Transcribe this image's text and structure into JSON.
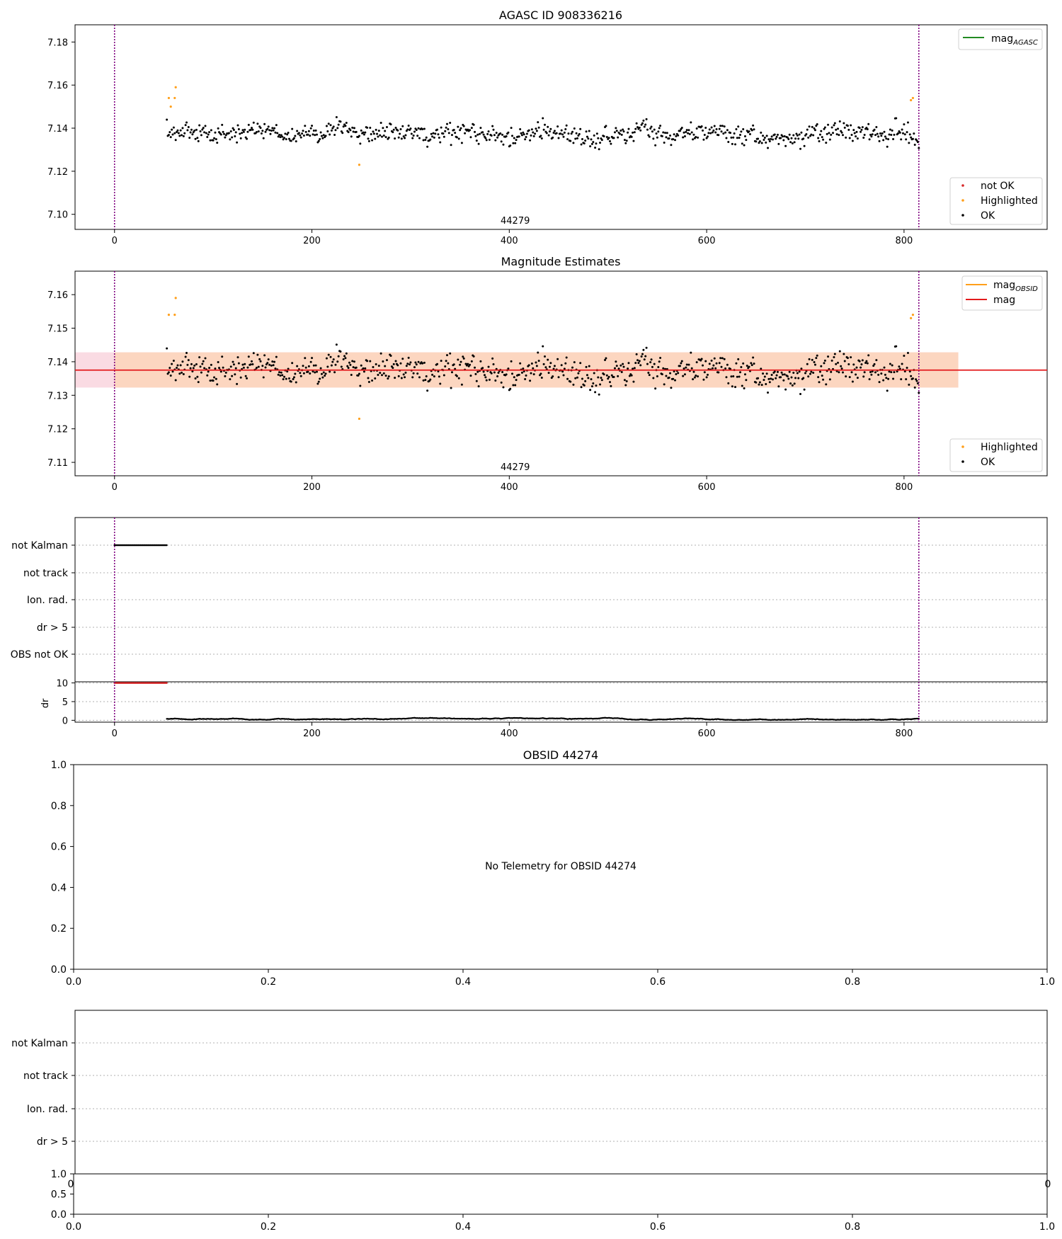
{
  "chart_data": [
    {
      "panel": "agasc",
      "type": "scatter",
      "title": "AGASC ID 908336216",
      "xlim": [
        -40,
        945
      ],
      "ylim": [
        7.093,
        7.188
      ],
      "xticks": [
        0,
        200,
        400,
        600,
        800
      ],
      "yticks": [
        7.1,
        7.12,
        7.14,
        7.16,
        7.18
      ],
      "ytick_labels": [
        "7.10",
        "7.12",
        "7.14",
        "7.16",
        "7.18"
      ],
      "obsid_label": "44279",
      "obsid_label_x": 406,
      "obs_boundaries": [
        0,
        815
      ],
      "data_x_range": [
        53,
        815
      ],
      "level": 7.1375,
      "highlighted": [
        [
          55,
          7.154
        ],
        [
          57,
          7.15
        ],
        [
          61,
          7.154
        ],
        [
          62,
          7.159
        ],
        [
          248,
          7.123
        ],
        [
          807,
          7.153
        ],
        [
          809,
          7.154
        ]
      ],
      "legend_lines": [
        {
          "label": "mag",
          "sub": "AGASC",
          "color": "#228b22"
        }
      ],
      "legend_points": [
        {
          "label": "not OK",
          "color": "#d62728"
        },
        {
          "label": "Highlighted",
          "color": "#ff9f1a"
        },
        {
          "label": "OK",
          "color": "#000000"
        }
      ]
    },
    {
      "panel": "estimates",
      "type": "scatter",
      "title": "Magnitude Estimates",
      "xlim": [
        -40,
        945
      ],
      "ylim": [
        7.106,
        7.167
      ],
      "xticks": [
        0,
        200,
        400,
        600,
        800
      ],
      "yticks": [
        7.11,
        7.12,
        7.13,
        7.14,
        7.15,
        7.16
      ],
      "ytick_labels": [
        "7.11",
        "7.12",
        "7.13",
        "7.14",
        "7.15",
        "7.16"
      ],
      "obsid_label": "44279",
      "obsid_label_x": 406,
      "obs_boundaries": [
        0,
        815
      ],
      "data_x_range": [
        53,
        815
      ],
      "mag": 7.1375,
      "mag_band": [
        7.1323,
        7.1428
      ],
      "band_x_range": [
        -40,
        855
      ],
      "obsid_band_x_range": [
        0,
        855
      ],
      "highlighted": [
        [
          55,
          7.154
        ],
        [
          61,
          7.154
        ],
        [
          62,
          7.159
        ],
        [
          248,
          7.123
        ],
        [
          807,
          7.153
        ],
        [
          809,
          7.154
        ]
      ],
      "legend_lines": [
        {
          "label": "mag",
          "sub": "OBSID",
          "color": "#ff9f1a"
        },
        {
          "label": "mag",
          "sub": "",
          "color": "#e31a1c"
        }
      ],
      "legend_points": [
        {
          "label": "Highlighted",
          "color": "#ff9f1a"
        },
        {
          "label": "OK",
          "color": "#000000"
        }
      ]
    },
    {
      "panel": "flags",
      "type": "scatter",
      "xlim": [
        -40,
        945
      ],
      "xticks": [
        0,
        200,
        400,
        600,
        800
      ],
      "obs_boundaries": [
        0,
        815
      ],
      "flag_labels": [
        "not Kalman",
        "not track",
        "Ion. rad.",
        "dr > 5",
        "OBS not OK"
      ],
      "not_kalman_x_range": [
        0,
        53
      ],
      "dr_ylabel": "dr",
      "dr_ylim": [
        -0.5,
        10.3
      ],
      "dr_yticks": [
        0,
        5,
        10
      ],
      "dr_ytick_labels": [
        "0",
        "5",
        "10"
      ],
      "dr_clipped_x_range": [
        0,
        53
      ],
      "dr_clipped_value": 10,
      "dr_x_range": [
        53,
        815
      ]
    },
    {
      "panel": "empty-obsid",
      "type": "scatter",
      "title": "OBSID 44274",
      "message": "No Telemetry for OBSID 44274",
      "xlim": [
        0,
        1
      ],
      "ylim": [
        0,
        1
      ],
      "xticks": [
        0.0,
        0.2,
        0.4,
        0.6,
        0.8,
        1.0
      ],
      "xtick_labels": [
        "0.0",
        "0.2",
        "0.4",
        "0.6",
        "0.8",
        "1.0"
      ],
      "yticks": [
        0.0,
        0.2,
        0.4,
        0.6,
        0.8,
        1.0
      ],
      "ytick_labels": [
        "0.0",
        "0.2",
        "0.4",
        "0.6",
        "0.8",
        "1.0"
      ]
    },
    {
      "panel": "empty-flags",
      "type": "scatter",
      "flag_labels": [
        "not Kalman",
        "not track",
        "Ion. rad.",
        "dr > 5"
      ],
      "clipped_tick_left": "0",
      "clipped_tick_right": "0",
      "sub_yticks": [
        0.0,
        0.5,
        1.0
      ],
      "sub_ytick_labels": [
        "0.0",
        "0.5",
        "1.0"
      ],
      "xticks": [
        0.0,
        0.2,
        0.4,
        0.6,
        0.8,
        1.0
      ],
      "xtick_labels": [
        "0.0",
        "0.2",
        "0.4",
        "0.6",
        "0.8",
        "1.0"
      ]
    }
  ],
  "colors": {
    "ok": "#000000",
    "highlighted": "#ff9f1a",
    "not_ok": "#d62728",
    "agasc_line": "#228b22",
    "mag_line": "#e31a1c",
    "band_pink": "#fadbe3",
    "band_orange": "#fcd6c0",
    "boundary": "#800080",
    "grid": "#b0b0b0"
  }
}
